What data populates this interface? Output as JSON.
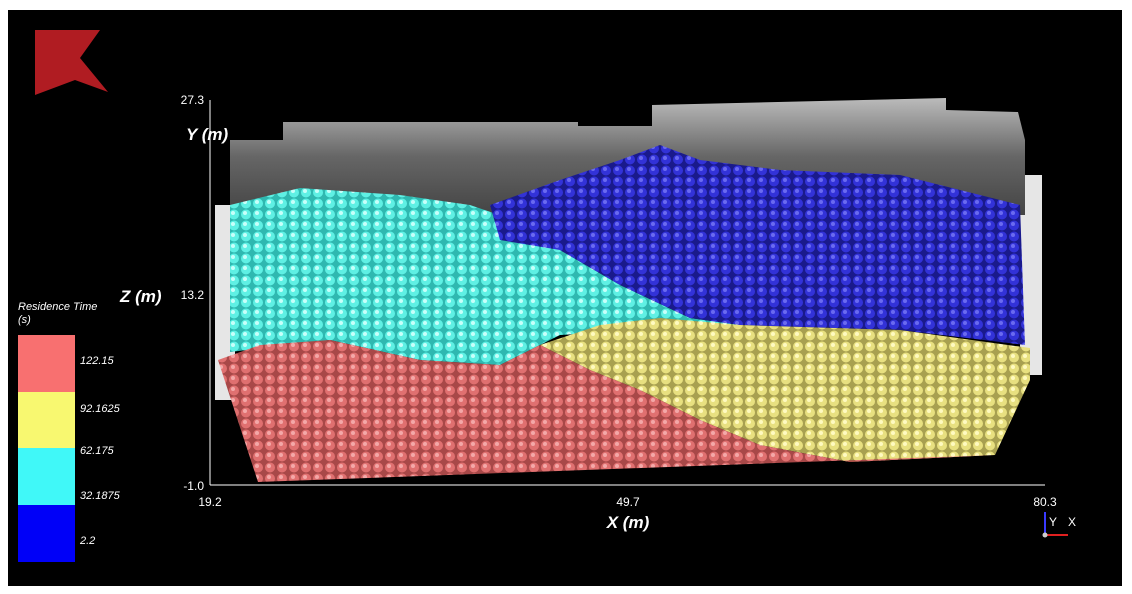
{
  "axes": {
    "y_label": "Y (m)",
    "z_label": "Z (m)",
    "x_label": "X (m)",
    "y_ticks": [
      "27.3",
      "13.2",
      "-1.0"
    ],
    "x_ticks": [
      "19.2",
      "49.7",
      "80.3"
    ]
  },
  "legend": {
    "title": "Residence Time",
    "unit": "(s)",
    "labels": [
      "122.15",
      "92.1625",
      "62.175",
      "32.1875",
      "2.2"
    ]
  },
  "orientation": {
    "y": "Y",
    "x": "X"
  }
}
